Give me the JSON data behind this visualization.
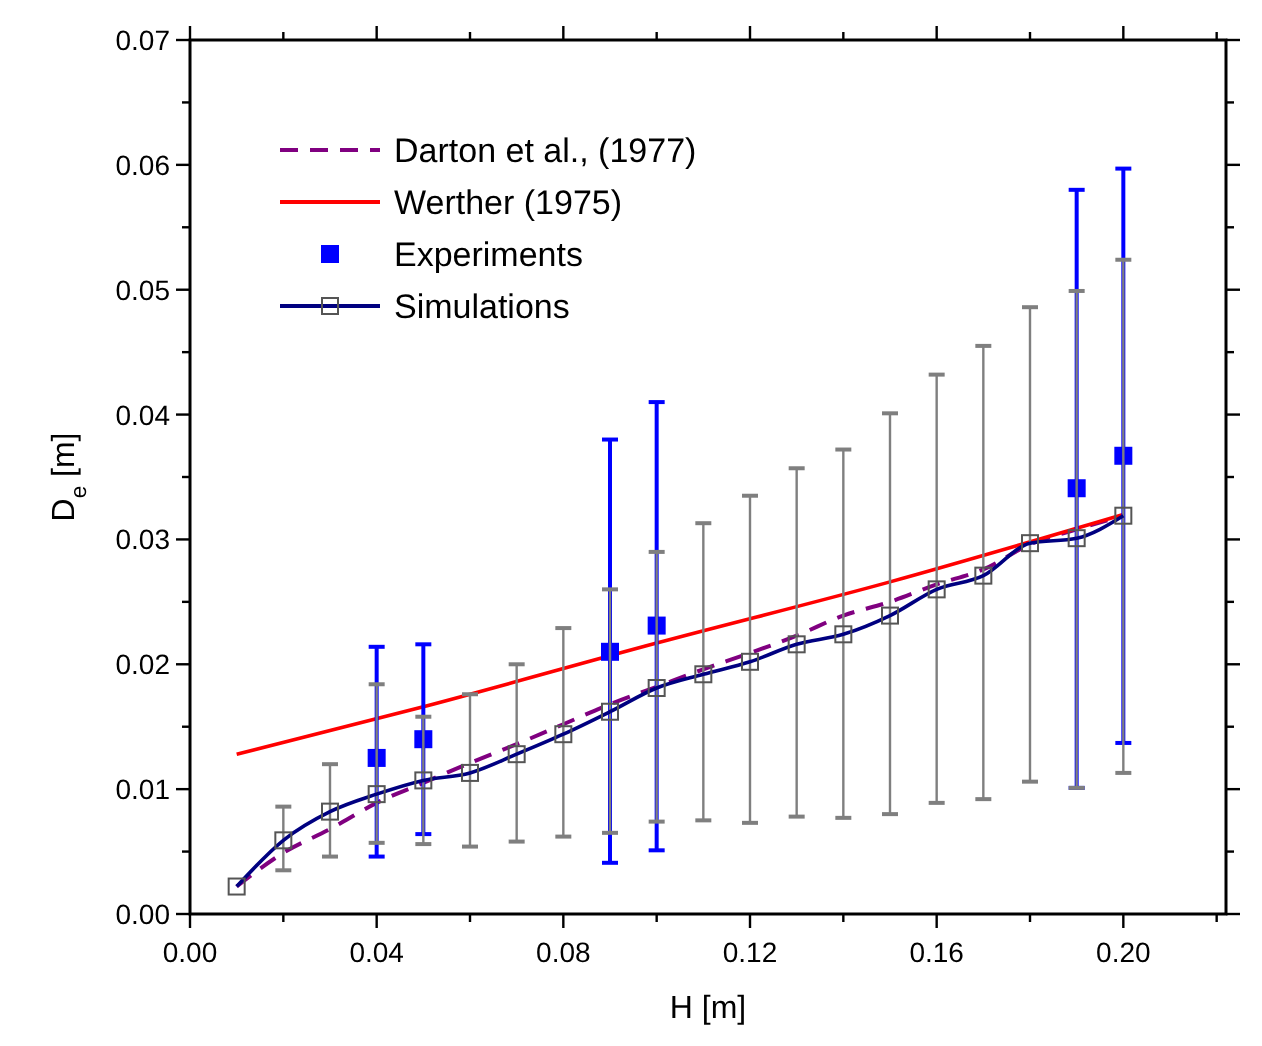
{
  "chart_data": {
    "type": "line",
    "xlabel": "H [m]",
    "ylabel": "D$_{e}$ [m]",
    "xlim": [
      0,
      0.222
    ],
    "ylim": [
      0,
      0.07
    ],
    "xticks": [
      {
        "value": 0,
        "label": "0.00"
      },
      {
        "value": 0.02,
        "label": null
      },
      {
        "value": 0.04,
        "label": "0.04"
      },
      {
        "value": 0.06,
        "label": null
      },
      {
        "value": 0.08,
        "label": "0.08"
      },
      {
        "value": 0.1,
        "label": null
      },
      {
        "value": 0.12,
        "label": "0.12"
      },
      {
        "value": 0.14,
        "label": null
      },
      {
        "value": 0.16,
        "label": "0.16"
      },
      {
        "value": 0.18,
        "label": null
      },
      {
        "value": 0.2,
        "label": "0.20"
      },
      {
        "value": 0.22,
        "label": null
      }
    ],
    "yticks": [
      {
        "value": 0,
        "label": "0.00"
      },
      {
        "value": 0.005,
        "label": null
      },
      {
        "value": 0.01,
        "label": "0.01"
      },
      {
        "value": 0.015,
        "label": null
      },
      {
        "value": 0.02,
        "label": "0.02"
      },
      {
        "value": 0.025,
        "label": null
      },
      {
        "value": 0.03,
        "label": "0.03"
      },
      {
        "value": 0.035,
        "label": null
      },
      {
        "value": 0.04,
        "label": "0.04"
      },
      {
        "value": 0.045,
        "label": null
      },
      {
        "value": 0.05,
        "label": "0.05"
      },
      {
        "value": 0.055,
        "label": null
      },
      {
        "value": 0.06,
        "label": "0.06"
      },
      {
        "value": 0.065,
        "label": null
      },
      {
        "value": 0.07,
        "label": "0.07"
      }
    ],
    "grid": false,
    "legend": "top left",
    "series": [
      {
        "name": "Darton et al., (1977)",
        "color": "#800080",
        "line_style": "dashed",
        "marker": "none",
        "x": [
          0.01,
          0.02,
          0.03,
          0.04,
          0.05,
          0.06,
          0.07,
          0.08,
          0.09,
          0.1,
          0.11,
          0.12,
          0.13,
          0.14,
          0.15,
          0.16,
          0.17,
          0.18,
          0.19,
          0.2
        ],
        "values": [
          0.0022,
          0.0049,
          0.0068,
          0.0089,
          0.0105,
          0.0121,
          0.0136,
          0.0152,
          0.0168,
          0.0182,
          0.0196,
          0.0209,
          0.0223,
          0.0239,
          0.025,
          0.0264,
          0.0276,
          0.0296,
          0.0308,
          0.0319
        ]
      },
      {
        "name": "Werther (1975)",
        "color": "#ff0000",
        "line_style": "solid",
        "marker": "none",
        "x": [
          0.01,
          0.05,
          0.1,
          0.15,
          0.2
        ],
        "values": [
          0.0128,
          0.0166,
          0.0217,
          0.0266,
          0.032
        ]
      },
      {
        "name": "Experiments",
        "type": "scatter",
        "color": "#0000ff",
        "marker": "square",
        "x": [
          0.04,
          0.05,
          0.09,
          0.1,
          0.19,
          0.2
        ],
        "values": [
          0.0125,
          0.014,
          0.021,
          0.0231,
          0.0341,
          0.0367
        ],
        "errors": [
          [
            0.0046,
            0.0214
          ],
          [
            0.0064,
            0.0216
          ],
          [
            0.0041,
            0.038
          ],
          [
            0.0051,
            0.041
          ],
          [
            0.0101,
            0.058
          ],
          [
            0.0137,
            0.0597
          ]
        ]
      },
      {
        "name": "Simulations",
        "color": "#000080",
        "line_style": "solid",
        "marker": "square",
        "x": [
          0.01,
          0.02,
          0.03,
          0.04,
          0.05,
          0.06,
          0.07,
          0.08,
          0.09,
          0.1,
          0.11,
          0.12,
          0.13,
          0.14,
          0.15,
          0.16,
          0.17,
          0.18,
          0.19,
          0.2
        ],
        "values": [
          0.0022,
          0.0059,
          0.0082,
          0.0096,
          0.0107,
          0.0113,
          0.0128,
          0.0144,
          0.0162,
          0.0181,
          0.0192,
          0.0202,
          0.0216,
          0.0224,
          0.0239,
          0.026,
          0.0271,
          0.0297,
          0.0301,
          0.0319
        ],
        "errors": [
          null,
          [
            0.0035,
            0.0086
          ],
          [
            0.0046,
            0.012
          ],
          [
            0.0057,
            0.0184
          ],
          [
            0.0056,
            0.0158
          ],
          [
            0.0054,
            0.0176
          ],
          [
            0.0058,
            0.02
          ],
          [
            0.0062,
            0.0229
          ],
          [
            0.0065,
            0.026
          ],
          [
            0.0074,
            0.029
          ],
          [
            0.0075,
            0.0313
          ],
          [
            0.0073,
            0.0335
          ],
          [
            0.0078,
            0.0357
          ],
          [
            0.0077,
            0.0372
          ],
          [
            0.008,
            0.0401
          ],
          [
            0.0089,
            0.0432
          ],
          [
            0.0092,
            0.0455
          ],
          [
            0.0106,
            0.0486
          ],
          [
            0.0101,
            0.0499
          ],
          [
            0.0113,
            0.0524
          ]
        ]
      }
    ]
  }
}
